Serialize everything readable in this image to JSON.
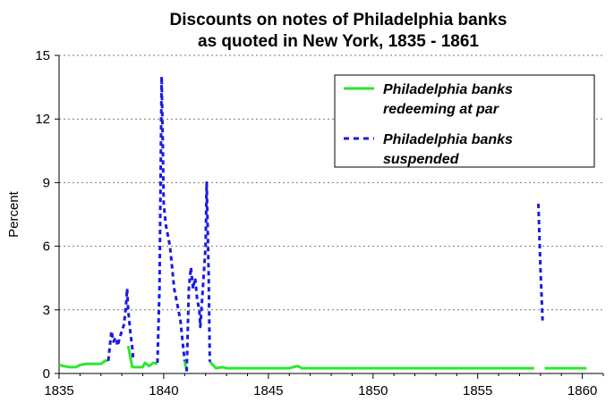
{
  "chart_data": {
    "type": "line",
    "title": "Discounts on notes of Philadelphia banks",
    "subtitle": "as quoted in New York, 1835 - 1861",
    "xlabel": "",
    "ylabel": "Percent",
    "xlim": [
      1835,
      1861
    ],
    "ylim": [
      0,
      15
    ],
    "x_ticks": [
      "1835",
      "1840",
      "1845",
      "1850",
      "1855",
      "1860"
    ],
    "y_ticks": [
      "0",
      "3",
      "6",
      "9",
      "12",
      "15"
    ],
    "grid": "horizontal dotted",
    "legend": "top-right",
    "series": [
      {
        "name": "Philadelphia banks redeeming at par",
        "legend_line1": "Philadelphia banks",
        "legend_line2": "redeeming at par",
        "style": "solid",
        "color": "#2ee62e",
        "segments": [
          [
            [
              1835.0,
              0.4
            ],
            [
              1835.2,
              0.35
            ],
            [
              1835.5,
              0.3
            ],
            [
              1835.8,
              0.3
            ],
            [
              1836.0,
              0.4
            ],
            [
              1836.3,
              0.45
            ],
            [
              1836.6,
              0.45
            ],
            [
              1837.0,
              0.45
            ],
            [
              1837.2,
              0.6
            ],
            [
              1837.35,
              0.6
            ]
          ],
          [
            [
              1838.3,
              1.3
            ],
            [
              1838.5,
              0.3
            ],
            [
              1838.8,
              0.3
            ],
            [
              1839.0,
              0.3
            ],
            [
              1839.1,
              0.5
            ],
            [
              1839.3,
              0.35
            ],
            [
              1839.5,
              0.5
            ],
            [
              1839.7,
              0.45
            ]
          ],
          [
            [
              1841.0,
              0.6
            ],
            [
              1841.1,
              0.1
            ]
          ],
          [
            [
              1842.2,
              0.55
            ],
            [
              1842.5,
              0.25
            ],
            [
              1842.8,
              0.3
            ],
            [
              1843.0,
              0.25
            ],
            [
              1844.0,
              0.25
            ],
            [
              1846.0,
              0.25
            ],
            [
              1846.4,
              0.35
            ],
            [
              1846.6,
              0.25
            ],
            [
              1850.0,
              0.25
            ],
            [
              1855.0,
              0.25
            ],
            [
              1857.7,
              0.25
            ]
          ],
          [
            [
              1858.2,
              0.25
            ],
            [
              1859.0,
              0.25
            ],
            [
              1860.2,
              0.25
            ]
          ]
        ]
      },
      {
        "name": "Philadelphia banks suspended",
        "legend_line1": "Philadelphia banks",
        "legend_line2": "suspended",
        "style": "dashed",
        "color": "#1a1ae6",
        "segments": [
          [
            [
              1837.35,
              0.6
            ],
            [
              1837.5,
              2.0
            ],
            [
              1837.6,
              1.5
            ],
            [
              1837.7,
              1.7
            ],
            [
              1837.8,
              1.3
            ],
            [
              1837.9,
              1.7
            ],
            [
              1838.0,
              2.0
            ],
            [
              1838.1,
              2.3
            ],
            [
              1838.2,
              3.2
            ],
            [
              1838.25,
              4.0
            ],
            [
              1838.3,
              3.0
            ],
            [
              1838.4,
              2.0
            ],
            [
              1838.5,
              1.2
            ],
            [
              1838.55,
              0.6
            ]
          ],
          [
            [
              1839.7,
              0.5
            ],
            [
              1839.8,
              4.0
            ],
            [
              1839.85,
              9.0
            ],
            [
              1839.9,
              14.0
            ],
            [
              1839.95,
              11.0
            ],
            [
              1840.0,
              8.0
            ],
            [
              1840.1,
              7.0
            ],
            [
              1840.2,
              6.5
            ],
            [
              1840.3,
              6.0
            ],
            [
              1840.4,
              5.0
            ],
            [
              1840.5,
              4.0
            ],
            [
              1840.6,
              3.5
            ],
            [
              1840.7,
              3.0
            ],
            [
              1840.8,
              2.5
            ],
            [
              1840.9,
              1.5
            ],
            [
              1841.0,
              0.6
            ]
          ],
          [
            [
              1841.1,
              0.1
            ],
            [
              1841.2,
              4.0
            ],
            [
              1841.3,
              5.0
            ],
            [
              1841.4,
              4.0
            ],
            [
              1841.5,
              4.5
            ],
            [
              1841.6,
              3.5
            ],
            [
              1841.7,
              3.0
            ],
            [
              1841.75,
              2.2
            ],
            [
              1841.8,
              3.0
            ],
            [
              1841.9,
              4.5
            ],
            [
              1842.0,
              6.0
            ],
            [
              1842.05,
              9.0
            ],
            [
              1842.1,
              7.0
            ],
            [
              1842.15,
              4.5
            ],
            [
              1842.2,
              0.55
            ]
          ],
          [
            [
              1857.9,
              8.0
            ],
            [
              1858.0,
              5.0
            ],
            [
              1858.1,
              2.5
            ]
          ]
        ]
      }
    ]
  }
}
